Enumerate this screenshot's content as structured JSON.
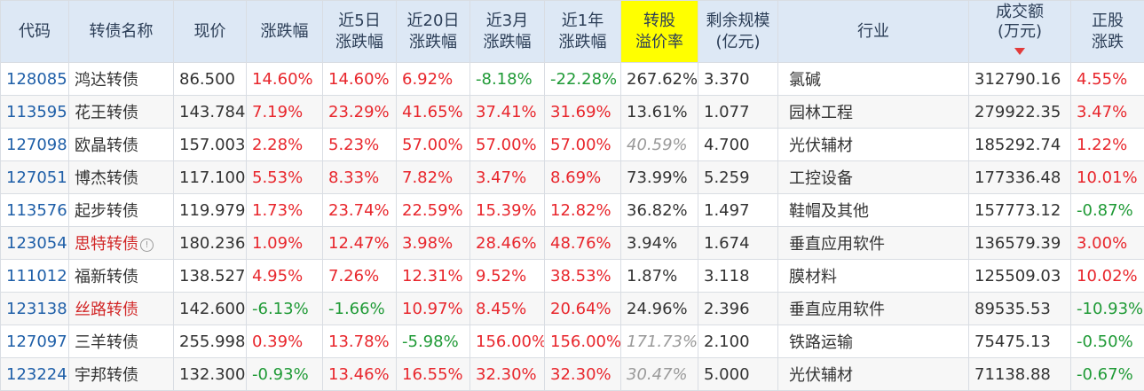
{
  "headers": [
    "代码",
    "转债名称",
    "现价",
    "涨跌幅",
    [
      "近5日",
      "涨跌幅"
    ],
    [
      "近20日",
      "涨跌幅"
    ],
    [
      "近3月",
      "涨跌幅"
    ],
    [
      "近1年",
      "涨跌幅"
    ],
    [
      "转股",
      "溢价率"
    ],
    [
      "剩余规模",
      "(亿元)"
    ],
    "行业",
    [
      "成交额",
      "(万元)"
    ],
    [
      "正股",
      "涨跌"
    ]
  ],
  "colors": {
    "up": "#e8262c",
    "down": "#1f9a36",
    "code": "#1f5fa8",
    "highlight": "#ffff00"
  },
  "rows": [
    {
      "code": "128085",
      "name": "鸿达转债",
      "price": "86.500",
      "chg": "14.60%",
      "chg5": "14.60%",
      "chg20": "6.92%",
      "chg3m": "-8.18%",
      "chg1y": "-22.28%",
      "premium": "267.62%",
      "remain": "3.370",
      "industry": "氯碱",
      "turnover": "312790.16",
      "stock_chg": "4.55%"
    },
    {
      "code": "113595",
      "name": "花王转债",
      "price": "143.784",
      "chg": "7.19%",
      "chg5": "23.29%",
      "chg20": "41.65%",
      "chg3m": "37.41%",
      "chg1y": "31.69%",
      "premium": "13.61%",
      "remain": "1.077",
      "industry": "园林工程",
      "turnover": "279922.35",
      "stock_chg": "3.47%"
    },
    {
      "code": "127098",
      "name": "欧晶转债",
      "price": "157.003",
      "chg": "2.28%",
      "chg5": "5.23%",
      "chg20": "57.00%",
      "chg3m": "57.00%",
      "chg1y": "57.00%",
      "premium": "40.59%",
      "premium_dim": true,
      "remain": "4.700",
      "industry": "光伏辅材",
      "turnover": "185292.74",
      "stock_chg": "1.22%"
    },
    {
      "code": "127051",
      "name": "博杰转债",
      "price": "117.100",
      "chg": "5.53%",
      "chg5": "8.33%",
      "chg20": "7.82%",
      "chg3m": "3.47%",
      "chg1y": "8.69%",
      "premium": "73.99%",
      "remain": "5.259",
      "industry": "工控设备",
      "turnover": "177336.48",
      "stock_chg": "10.01%"
    },
    {
      "code": "113576",
      "name": "起步转债",
      "price": "119.979",
      "chg": "1.73%",
      "chg5": "23.74%",
      "chg20": "22.59%",
      "chg3m": "15.39%",
      "chg1y": "12.82%",
      "premium": "36.82%",
      "remain": "1.497",
      "industry": "鞋帽及其他",
      "turnover": "157773.12",
      "stock_chg": "-0.87%"
    },
    {
      "code": "123054",
      "name": "思特转债",
      "name_warn": true,
      "price": "180.236",
      "chg": "1.09%",
      "chg5": "12.47%",
      "chg20": "3.98%",
      "chg3m": "28.46%",
      "chg1y": "48.76%",
      "premium": "3.94%",
      "remain": "1.674",
      "industry": "垂直应用软件",
      "turnover": "136579.39",
      "stock_chg": "3.00%"
    },
    {
      "code": "111012",
      "name": "福新转债",
      "price": "138.527",
      "chg": "4.95%",
      "chg5": "7.26%",
      "chg20": "12.31%",
      "chg3m": "9.52%",
      "chg1y": "38.53%",
      "premium": "1.87%",
      "remain": "3.118",
      "industry": "膜材料",
      "turnover": "125509.03",
      "stock_chg": "10.02%"
    },
    {
      "code": "123138",
      "name": "丝路转债",
      "name_warn": true,
      "price": "142.600",
      "chg": "-6.13%",
      "chg5": "-1.66%",
      "chg20": "10.97%",
      "chg3m": "8.45%",
      "chg1y": "20.64%",
      "premium": "24.96%",
      "remain": "2.396",
      "industry": "垂直应用软件",
      "turnover": "89535.53",
      "stock_chg": "-10.93%"
    },
    {
      "code": "127097",
      "name": "三羊转债",
      "price": "255.998",
      "chg": "0.39%",
      "chg5": "13.78%",
      "chg20": "-5.98%",
      "chg3m": "156.00%",
      "chg1y": "156.00%",
      "premium": "171.73%",
      "premium_dim": true,
      "remain": "2.100",
      "industry": "铁路运输",
      "turnover": "75475.13",
      "stock_chg": "-0.50%"
    },
    {
      "code": "123224",
      "name": "宇邦转债",
      "price": "132.300",
      "chg": "-0.93%",
      "chg5": "13.46%",
      "chg20": "16.55%",
      "chg3m": "32.30%",
      "chg1y": "32.30%",
      "premium": "30.47%",
      "premium_dim": true,
      "remain": "5.000",
      "industry": "光伏辅材",
      "turnover": "71138.88",
      "stock_chg": "-0.67%"
    }
  ]
}
